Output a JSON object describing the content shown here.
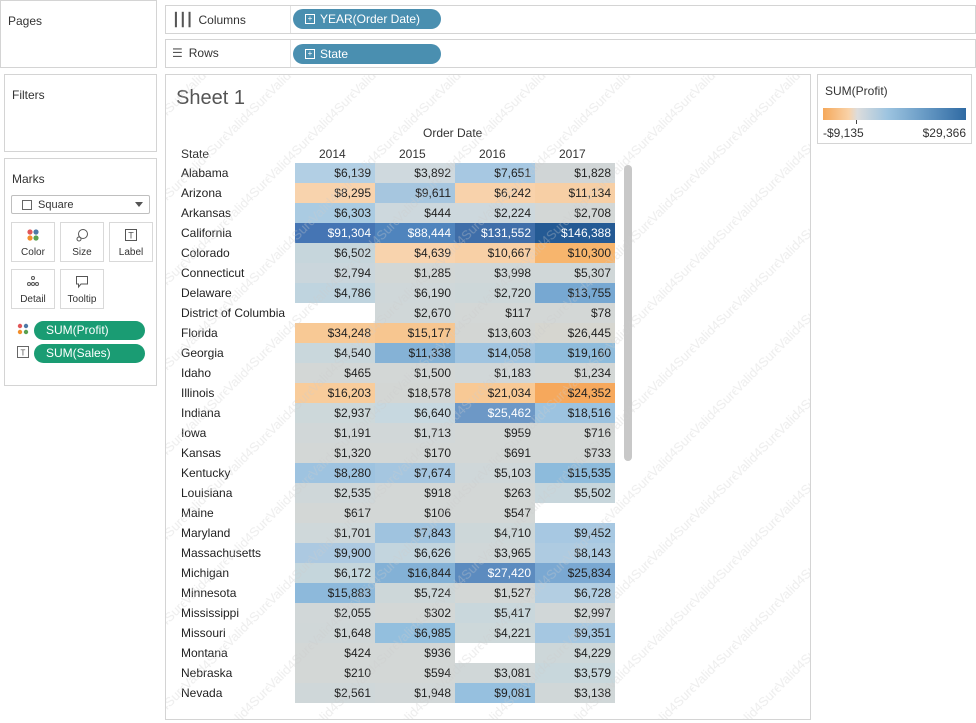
{
  "panels": {
    "pages_label": "Pages",
    "filters_label": "Filters",
    "marks_label": "Marks"
  },
  "shelves": {
    "columns_label": "Columns",
    "columns_pill": "YEAR(Order Date)",
    "rows_label": "Rows",
    "rows_pill": "State"
  },
  "marks": {
    "type_selected": "Square",
    "buttons": [
      "Color",
      "Size",
      "Label",
      "Detail",
      "Tooltip"
    ],
    "fields": [
      "SUM(Profit)",
      "SUM(Sales)"
    ]
  },
  "sheet": {
    "title": "Sheet 1",
    "column_group_header": "Order Date",
    "row_header": "State",
    "years": [
      "2014",
      "2015",
      "2016",
      "2017"
    ],
    "rows": [
      {
        "state": "Alabama",
        "values": [
          "$6,139",
          "$3,892",
          "$7,651",
          "$1,828"
        ]
      },
      {
        "state": "Arizona",
        "values": [
          "$8,295",
          "$9,611",
          "$6,242",
          "$11,134"
        ]
      },
      {
        "state": "Arkansas",
        "values": [
          "$6,303",
          "$444",
          "$2,224",
          "$2,708"
        ]
      },
      {
        "state": "California",
        "values": [
          "$91,304",
          "$88,444",
          "$131,552",
          "$146,388"
        ]
      },
      {
        "state": "Colorado",
        "values": [
          "$6,502",
          "$4,639",
          "$10,667",
          "$10,300"
        ]
      },
      {
        "state": "Connecticut",
        "values": [
          "$2,794",
          "$1,285",
          "$3,998",
          "$5,307"
        ]
      },
      {
        "state": "Delaware",
        "values": [
          "$4,786",
          "$6,190",
          "$2,720",
          "$13,755"
        ]
      },
      {
        "state": "District of Columbia",
        "values": [
          "",
          "$2,670",
          "$117",
          "$78"
        ]
      },
      {
        "state": "Florida",
        "values": [
          "$34,248",
          "$15,177",
          "$13,603",
          "$26,445"
        ]
      },
      {
        "state": "Georgia",
        "values": [
          "$4,540",
          "$11,338",
          "$14,058",
          "$19,160"
        ]
      },
      {
        "state": "Idaho",
        "values": [
          "$465",
          "$1,500",
          "$1,183",
          "$1,234"
        ]
      },
      {
        "state": "Illinois",
        "values": [
          "$16,203",
          "$18,578",
          "$21,034",
          "$24,352"
        ]
      },
      {
        "state": "Indiana",
        "values": [
          "$2,937",
          "$6,640",
          "$25,462",
          "$18,516"
        ]
      },
      {
        "state": "Iowa",
        "values": [
          "$1,191",
          "$1,713",
          "$959",
          "$716"
        ]
      },
      {
        "state": "Kansas",
        "values": [
          "$1,320",
          "$170",
          "$691",
          "$733"
        ]
      },
      {
        "state": "Kentucky",
        "values": [
          "$8,280",
          "$7,674",
          "$5,103",
          "$15,535"
        ]
      },
      {
        "state": "Louisiana",
        "values": [
          "$2,535",
          "$918",
          "$263",
          "$5,502"
        ]
      },
      {
        "state": "Maine",
        "values": [
          "$617",
          "$106",
          "$547",
          ""
        ]
      },
      {
        "state": "Maryland",
        "values": [
          "$1,701",
          "$7,843",
          "$4,710",
          "$9,452"
        ]
      },
      {
        "state": "Massachusetts",
        "values": [
          "$9,900",
          "$6,626",
          "$3,965",
          "$8,143"
        ]
      },
      {
        "state": "Michigan",
        "values": [
          "$6,172",
          "$16,844",
          "$27,420",
          "$25,834"
        ]
      },
      {
        "state": "Minnesota",
        "values": [
          "$15,883",
          "$5,724",
          "$1,527",
          "$6,728"
        ]
      },
      {
        "state": "Mississippi",
        "values": [
          "$2,055",
          "$302",
          "$5,417",
          "$2,997"
        ]
      },
      {
        "state": "Missouri",
        "values": [
          "$1,648",
          "$6,985",
          "$4,221",
          "$9,351"
        ]
      },
      {
        "state": "Montana",
        "values": [
          "$424",
          "$936",
          "",
          "$4,229"
        ]
      },
      {
        "state": "Nebraska",
        "values": [
          "$210",
          "$594",
          "$3,081",
          "$3,579"
        ]
      },
      {
        "state": "Nevada",
        "values": [
          "$2,561",
          "$1,948",
          "$9,081",
          "$3,138"
        ]
      }
    ],
    "colors": [
      [
        "#b2cfe4",
        "#cfd9de",
        "#a7c8e2",
        "#d0d5d6"
      ],
      [
        "#f8d3ad",
        "#a6c6df",
        "#f8d2ab",
        "#f7cfa5"
      ],
      [
        "#aacbe2",
        "#cdd8dd",
        "#cdd8dd",
        "#d3d7d6"
      ],
      [
        "#4575b4",
        "#4f84bd",
        "#3f6ea9",
        "#245a94"
      ],
      [
        "#c6d6dc",
        "#f8d3ad",
        "#f8d0a6",
        "#f7b56d"
      ],
      [
        "#cad6dc",
        "#d2d7d6",
        "#d0d7d8",
        "#d0d7d8"
      ],
      [
        "#bfd4df",
        "#cfd7d9",
        "#cdd7d9",
        "#77a8d2"
      ],
      [
        "#ffffff",
        "#d0d7d8",
        "#d3d7d6",
        "#d3d7d6"
      ],
      [
        "#f8c995",
        "#f7c690",
        "#d3d6d4",
        "#d6d6d0"
      ],
      [
        "#c9d7dc",
        "#85b2d6",
        "#a0c4e0",
        "#8fbcdc"
      ],
      [
        "#d3d7d6",
        "#d3d7d6",
        "#d1d7d8",
        "#d3d7d6"
      ],
      [
        "#f8cc9b",
        "#d3d6d4",
        "#f8c995",
        "#f6a85c"
      ],
      [
        "#cdd8da",
        "#c7d8e0",
        "#6d98c6",
        "#9cc3e0"
      ],
      [
        "#d1d7d8",
        "#d1d7d8",
        "#d3d7d6",
        "#d3d7d6"
      ],
      [
        "#d3d7d6",
        "#d3d7d6",
        "#d3d7d6",
        "#d3d7d6"
      ],
      [
        "#9ec3e0",
        "#a5c6e0",
        "#cfd7d9",
        "#8dbbdc"
      ],
      [
        "#cfd7d9",
        "#d3d7d6",
        "#d3d7d6",
        "#c7d6dc"
      ],
      [
        "#d3d7d6",
        "#d3d7d6",
        "#d3d7d6",
        "#ffffff"
      ],
      [
        "#cfd8da",
        "#9fc3df",
        "#cdd7d9",
        "#a7c8e2"
      ],
      [
        "#acc9e1",
        "#c3d5de",
        "#d0d7d8",
        "#aecbe1"
      ],
      [
        "#c5d6dc",
        "#83b1d6",
        "#5c8bbf",
        "#7aa8d2"
      ],
      [
        "#8db9db",
        "#cdd7d9",
        "#d3d7d6",
        "#b3cee2"
      ],
      [
        "#d1d7d8",
        "#d3d7d6",
        "#c9d7dc",
        "#d1d7d8"
      ],
      [
        "#d0d7d8",
        "#93bfde",
        "#cdd8da",
        "#a5c7e1"
      ],
      [
        "#d3d7d6",
        "#d3d7d6",
        "#ffffff",
        "#cdd7d9"
      ],
      [
        "#d3d7d6",
        "#d3d7d6",
        "#d0d7d8",
        "#c8d7dc"
      ],
      [
        "#cfd7d9",
        "#d1d7d8",
        "#96c0df",
        "#d0d7d8"
      ]
    ]
  },
  "legend": {
    "title": "SUM(Profit)",
    "min_label": "-$9,135",
    "max_label": "$29,366"
  },
  "watermark": "Valid4Sure"
}
